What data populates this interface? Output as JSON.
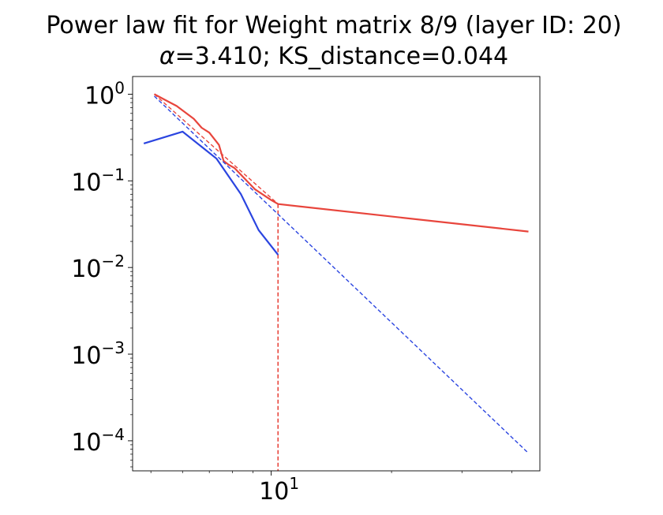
{
  "chart_data": {
    "type": "line",
    "title": "Power law fit for Weight matrix 8/9 (layer ID: 20)",
    "subtitle": {
      "alpha_symbol": "α",
      "alpha_text": "=3.410; KS_distance=0.044"
    },
    "xlabel": "",
    "ylabel": "",
    "x_scale": "log",
    "y_scale": "log",
    "xlim": [
      4.5,
      47
    ],
    "ylim": [
      4.5e-05,
      1.6
    ],
    "x_tick_labels": [
      {
        "value": 10,
        "base": "10",
        "exp": "1"
      }
    ],
    "y_tick_labels": [
      {
        "value": 1,
        "base": "10",
        "exp": "0"
      },
      {
        "value": 0.1,
        "base": "10",
        "exp": "−1"
      },
      {
        "value": 0.01,
        "base": "10",
        "exp": "−2"
      },
      {
        "value": 0.001,
        "base": "10",
        "exp": "−3"
      },
      {
        "value": 0.0001,
        "base": "10",
        "exp": "−4"
      }
    ],
    "x_minor_ticks": [
      5,
      6,
      7,
      8,
      9,
      20,
      30,
      40
    ],
    "grid": false,
    "legend": "none",
    "colors": {
      "red": "#e8453c",
      "blue": "#2b45e0"
    },
    "series": [
      {
        "color": "#e8453c",
        "style": "solid",
        "points": [
          [
            5.1,
            1.0
          ],
          [
            5.4,
            0.87
          ],
          [
            5.8,
            0.73
          ],
          [
            6.2,
            0.58
          ],
          [
            6.4,
            0.52
          ],
          [
            6.7,
            0.41
          ],
          [
            7.0,
            0.36
          ],
          [
            7.4,
            0.26
          ],
          [
            7.6,
            0.17
          ],
          [
            7.8,
            0.155
          ],
          [
            8.1,
            0.14
          ],
          [
            8.6,
            0.105
          ],
          [
            9.1,
            0.08
          ],
          [
            10.0,
            0.06
          ],
          [
            10.4,
            0.054
          ],
          [
            44.0,
            0.026
          ]
        ]
      },
      {
        "color": "#e8453c",
        "style": "dashed",
        "points": [
          [
            5.1,
            1.0
          ],
          [
            10.4,
            0.054
          ]
        ]
      },
      {
        "color": "#2b45e0",
        "style": "solid",
        "points": [
          [
            4.8,
            0.27
          ],
          [
            6.0,
            0.37
          ],
          [
            7.3,
            0.18
          ],
          [
            8.4,
            0.07
          ],
          [
            9.3,
            0.027
          ],
          [
            10.4,
            0.014
          ]
        ]
      },
      {
        "color": "#2b45e0",
        "style": "dashed",
        "points": [
          [
            5.1,
            0.95
          ],
          [
            44.0,
            7.2e-05
          ]
        ]
      }
    ],
    "xmin_line": {
      "x": 10.4,
      "color": "#e8453c",
      "style": "dashed"
    }
  }
}
